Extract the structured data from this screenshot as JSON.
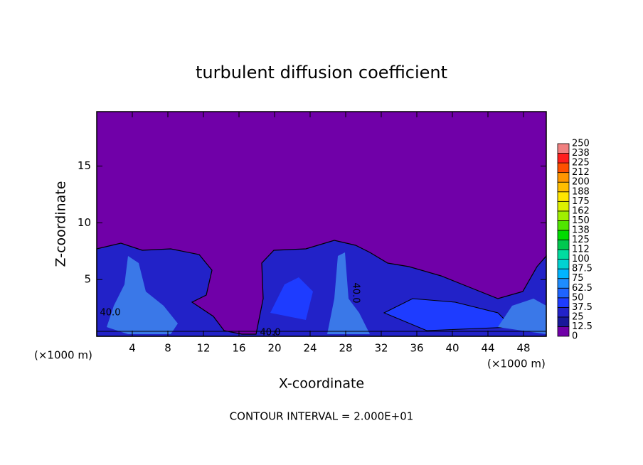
{
  "chart_data": {
    "type": "contour",
    "title": "turbulent diffusion coefficient",
    "x_label": "X-coordinate",
    "y_label": "Z-coordinate",
    "x_unit_label": "(×1000 m)",
    "annotation": "CONTOUR INTERVAL = 2.000E+01",
    "contour_labels": [
      "40.0",
      "40.0",
      "40.0"
    ],
    "xlim": [
      0,
      50.56
    ],
    "ylim": [
      0,
      19.8
    ],
    "xticks": [
      4,
      8,
      12,
      16,
      20,
      24,
      28,
      32,
      36,
      40,
      44,
      48
    ],
    "yticks": [
      5,
      10,
      15
    ],
    "colorbar": {
      "ticks": [
        0,
        12.5,
        25,
        37.5,
        50,
        62.5,
        75,
        87.5,
        100,
        {
          "value": 112.5,
          "label": "112"
        },
        125,
        {
          "value": 137.5,
          "label": "138"
        },
        150,
        {
          "value": 162.5,
          "label": "162"
        },
        175,
        {
          "value": 187.5,
          "label": "188"
        },
        200,
        {
          "value": 212.5,
          "label": "212"
        },
        225,
        {
          "value": 237.5,
          "label": "238"
        },
        250
      ],
      "colors": [
        "#7000a8",
        "#18189a",
        "#2222c8",
        "#1e3cff",
        "#1e64ff",
        "#1e8cff",
        "#00b4ff",
        "#00d2d2",
        "#00dca0",
        "#00c850",
        "#00dc00",
        "#50e600",
        "#a0f000",
        "#dcf000",
        "#ffe600",
        "#ffbe00",
        "#ff9600",
        "#ff5000",
        "#ff1e1e",
        "#f08080"
      ]
    }
  }
}
